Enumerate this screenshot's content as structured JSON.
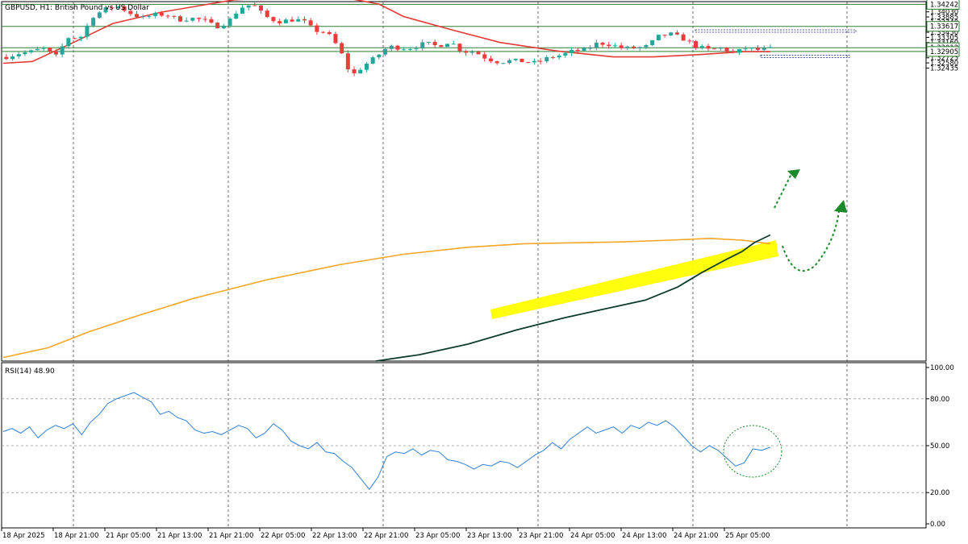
{
  "window": {
    "title": "GBPUSD, H1:  British Pound vs US Dollar"
  },
  "colors": {
    "bull": "#26a69a",
    "bear": "#ef3b3b",
    "ma50": "#e53935",
    "ma100": "#f5a623",
    "ma200": "#0d3b2e",
    "highlight": "#ffff00",
    "level": "#2e7d32",
    "rsi": "#2f7fd8",
    "grid": "#808080"
  },
  "chart_data": [
    {
      "type": "candlestick",
      "title": "GBPUSD, H1:  British Pound vs US Dollar",
      "ylim": [
        1.2412,
        1.3432
      ],
      "price_ticks": [
        "1.34175",
        "1.34030",
        "1.33885",
        "1.33740",
        "1.33595",
        "1.33450",
        "1.33305",
        "1.33160",
        "1.32870",
        "1.32725",
        "1.32580",
        "1.32435"
      ],
      "time_labels": [
        "18 Apr 2025",
        "18 Apr 21:00",
        "21 Apr 05:00",
        "21 Apr 13:00",
        "21 Apr 21:00",
        "22 Apr 05:00",
        "22 Apr 13:00",
        "22 Apr 21:00",
        "23 Apr 05:00",
        "23 Apr 13:00",
        "23 Apr 21:00",
        "24 Apr 05:00",
        "24 Apr 13:00",
        "24 Apr 21:00",
        "25 Apr 05:00"
      ],
      "levels": [
        {
          "value": 1.34242,
          "label": "1.34242"
        },
        {
          "value": 1.33617,
          "label": "1.33617"
        },
        {
          "value": 1.33012,
          "label": "1.33012"
        },
        {
          "value": 1.32905,
          "label": "1.32905"
        }
      ],
      "dashed_boxes": [
        {
          "value": 1.33485
        },
        {
          "value": 1.32765
        }
      ],
      "ohlc_anchors": [
        1.3275,
        1.3285,
        1.329,
        1.33,
        1.3275,
        1.333,
        1.333,
        1.339,
        1.341,
        1.342,
        1.34,
        1.3385,
        1.3395,
        1.3395,
        1.338,
        1.3385,
        1.338,
        1.336,
        1.3375,
        1.3415,
        1.3425,
        1.339,
        1.3375,
        1.338,
        1.338,
        1.335,
        1.3345,
        1.33,
        1.322,
        1.325,
        1.3275,
        1.3305,
        1.33,
        1.33,
        1.3315,
        1.3305,
        1.332,
        1.329,
        1.329,
        1.327,
        1.326,
        1.3265,
        1.3262,
        1.3258,
        1.3273,
        1.328,
        1.3292,
        1.3295,
        1.3315,
        1.331,
        1.33,
        1.33,
        1.3305,
        1.3335,
        1.334,
        1.3325,
        1.3305,
        1.3295,
        1.33,
        1.3285,
        1.33,
        1.3295,
        1.3298
      ],
      "series": [
        {
          "name": "MA red",
          "values": [
            1.3257,
            1.3262,
            1.3315,
            1.337,
            1.3402,
            1.3437,
            1.3447,
            1.3442,
            1.3425,
            1.339,
            1.3352,
            1.3316,
            1.3292,
            1.3275,
            1.3275,
            1.3282,
            1.329,
            1.329
          ]
        },
        {
          "name": "MA orange",
          "values": [
            1.2422,
            1.245,
            1.2495,
            1.254,
            1.259,
            1.2642,
            1.2685,
            1.2715,
            1.2735,
            1.2745,
            1.2748,
            1.275,
            1.2755,
            1.276,
            1.2755,
            1.2745
          ]
        },
        {
          "name": "MA dark",
          "values": [
            1.2412,
            1.243,
            1.246,
            1.25,
            1.2535,
            1.256,
            1.2585,
            1.2622,
            1.2663,
            1.27,
            1.2723,
            1.2748,
            1.277
          ]
        }
      ]
    },
    {
      "type": "line",
      "title": "RSI(14) 48.90",
      "ylim": [
        0,
        100
      ],
      "ticks": [
        "100.00",
        "80.00",
        "50.00",
        "20.00",
        "0.00"
      ],
      "levels": [
        80,
        50,
        20
      ],
      "values": [
        59,
        61,
        58,
        62,
        55,
        60,
        63,
        61,
        64,
        57,
        65,
        70,
        77,
        80,
        82,
        84,
        81,
        78,
        70,
        72,
        68,
        66,
        60,
        58,
        59,
        57,
        60,
        63,
        61,
        55,
        58,
        64,
        60,
        53,
        50,
        48,
        52,
        46,
        45,
        40,
        36,
        29,
        22,
        30,
        43,
        46,
        45,
        48,
        44,
        47,
        46,
        41,
        40,
        38,
        35,
        38,
        37,
        40,
        39,
        36,
        40,
        44,
        47,
        52,
        48,
        54,
        58,
        62,
        58,
        60,
        62,
        58,
        63,
        61,
        65,
        63,
        66,
        62,
        56,
        50,
        46,
        50,
        47,
        42,
        37,
        39,
        48,
        47,
        49
      ]
    }
  ]
}
